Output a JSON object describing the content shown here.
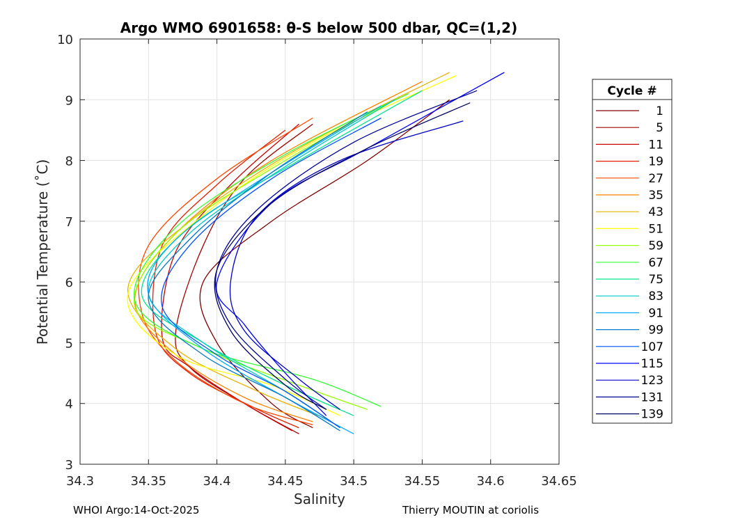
{
  "chart_data": {
    "type": "line",
    "title": "Argo WMO 6901658: θ-S below 500 dbar,  QC=(1,2)",
    "xlabel": "Salinity",
    "ylabel": "Potential Temperature (˚C)",
    "xlim": [
      34.3,
      34.65
    ],
    "ylim": [
      3,
      10
    ],
    "xticks": [
      34.3,
      34.35,
      34.4,
      34.45,
      34.5,
      34.55,
      34.6,
      34.65
    ],
    "xtick_labels": [
      "34.3",
      "34.35",
      "34.4",
      "34.45",
      "34.5",
      "34.55",
      "34.6",
      "34.65"
    ],
    "yticks": [
      3,
      4,
      5,
      6,
      7,
      8,
      9,
      10
    ],
    "ytick_labels": [
      "3",
      "4",
      "5",
      "6",
      "7",
      "8",
      "9",
      "10"
    ],
    "grid": true,
    "legend_title": "Cycle #",
    "legend_position": "outside-right",
    "series": [
      {
        "name": "1",
        "color": "#800000",
        "theta": [
          9.0,
          8.0,
          7.0,
          6.0,
          5.0,
          4.0,
          3.6
        ],
        "salinity": [
          34.57,
          34.51,
          34.44,
          34.39,
          34.4,
          34.44,
          34.47
        ]
      },
      {
        "name": "5",
        "color": "#a00000",
        "theta": [
          8.6,
          7.7,
          6.6,
          5.2,
          4.6,
          4.0,
          3.5
        ],
        "salinity": [
          34.47,
          34.42,
          34.39,
          34.37,
          34.38,
          34.42,
          34.46
        ]
      },
      {
        "name": "11",
        "color": "#c80000",
        "theta": [
          8.6,
          7.6,
          6.5,
          5.1,
          4.6,
          4.0,
          3.55
        ],
        "salinity": [
          34.46,
          34.41,
          34.37,
          34.36,
          34.38,
          34.42,
          34.455
        ]
      },
      {
        "name": "19",
        "color": "#e11e00",
        "theta": [
          8.5,
          7.6,
          6.6,
          5.2,
          4.5,
          3.9,
          3.6
        ],
        "salinity": [
          34.45,
          34.4,
          34.36,
          34.355,
          34.38,
          34.43,
          34.46
        ]
      },
      {
        "name": "27",
        "color": "#ff4600",
        "theta": [
          8.7,
          7.7,
          6.6,
          5.5,
          4.7,
          4.0,
          3.65
        ],
        "salinity": [
          34.47,
          34.4,
          34.35,
          34.345,
          34.37,
          34.42,
          34.47
        ]
      },
      {
        "name": "35",
        "color": "#ff8200",
        "theta": [
          9.3,
          8.0,
          6.8,
          5.7,
          4.8,
          4.1,
          3.7
        ],
        "salinity": [
          34.55,
          34.44,
          34.37,
          34.34,
          34.37,
          34.42,
          34.47
        ]
      },
      {
        "name": "43",
        "color": "#e6b400",
        "theta": [
          9.45,
          8.2,
          7.0,
          5.9,
          4.9,
          4.2,
          3.75
        ],
        "salinity": [
          34.57,
          34.46,
          34.38,
          34.335,
          34.37,
          34.43,
          34.48
        ]
      },
      {
        "name": "51",
        "color": "#ffff00",
        "theta": [
          9.4,
          8.3,
          7.1,
          5.8,
          4.8,
          4.3,
          3.8
        ],
        "salinity": [
          34.575,
          34.47,
          34.39,
          34.335,
          34.37,
          34.44,
          34.49
        ]
      },
      {
        "name": "59",
        "color": "#96ff00",
        "theta": [
          9.0,
          8.0,
          6.8,
          5.6,
          4.9,
          4.3,
          3.9
        ],
        "salinity": [
          34.53,
          34.45,
          34.37,
          34.34,
          34.39,
          34.46,
          34.51
        ]
      },
      {
        "name": "67",
        "color": "#32ff32",
        "theta": [
          9.1,
          8.1,
          6.9,
          5.7,
          4.9,
          4.4,
          3.95
        ],
        "salinity": [
          34.54,
          34.45,
          34.37,
          34.34,
          34.39,
          34.47,
          34.52
        ]
      },
      {
        "name": "75",
        "color": "#00e68c",
        "theta": [
          9.15,
          8.0,
          6.9,
          5.8,
          5.0,
          4.3,
          3.8
        ],
        "salinity": [
          34.55,
          34.46,
          34.38,
          34.345,
          34.39,
          34.45,
          34.5
        ]
      },
      {
        "name": "83",
        "color": "#00c8c8",
        "theta": [
          9.0,
          7.9,
          6.8,
          5.8,
          5.0,
          4.2,
          3.6
        ],
        "salinity": [
          34.53,
          34.45,
          34.38,
          34.35,
          34.39,
          34.45,
          34.49
        ]
      },
      {
        "name": "91",
        "color": "#00aaff",
        "theta": [
          8.9,
          7.8,
          6.7,
          5.8,
          4.9,
          4.1,
          3.5
        ],
        "salinity": [
          34.52,
          34.44,
          34.37,
          34.35,
          34.39,
          34.45,
          34.5
        ]
      },
      {
        "name": "99",
        "color": "#0078c8",
        "theta": [
          8.8,
          7.8,
          6.7,
          5.7,
          4.8,
          4.1,
          3.55
        ],
        "salinity": [
          34.51,
          34.44,
          34.38,
          34.35,
          34.39,
          34.45,
          34.49
        ]
      },
      {
        "name": "107",
        "color": "#0050ff",
        "theta": [
          8.7,
          7.7,
          6.6,
          5.6,
          4.8,
          4.2,
          3.6
        ],
        "salinity": [
          34.52,
          34.44,
          34.38,
          34.36,
          34.4,
          34.45,
          34.49
        ]
      },
      {
        "name": "115",
        "color": "#0000ff",
        "theta": [
          9.45,
          8.2,
          7.3,
          6.0,
          5.3,
          4.5,
          3.8
        ],
        "salinity": [
          34.61,
          34.51,
          34.44,
          34.4,
          34.42,
          34.45,
          34.48
        ]
      },
      {
        "name": "123",
        "color": "#0000c8",
        "theta": [
          8.65,
          8.0,
          7.1,
          6.0,
          5.2,
          4.4,
          3.9
        ],
        "salinity": [
          34.58,
          34.49,
          34.43,
          34.41,
          34.42,
          34.46,
          34.49
        ]
      },
      {
        "name": "131",
        "color": "#000096",
        "theta": [
          9.15,
          8.3,
          7.2,
          6.2,
          5.3,
          4.4,
          3.9
        ],
        "salinity": [
          34.59,
          34.5,
          34.43,
          34.4,
          34.41,
          34.45,
          34.48
        ]
      },
      {
        "name": "139",
        "color": "#000064",
        "theta": [
          8.95,
          8.2,
          7.3,
          6.2,
          5.2,
          4.3,
          3.9
        ],
        "salinity": [
          34.585,
          34.51,
          34.44,
          34.4,
          34.41,
          34.45,
          34.48
        ]
      }
    ]
  },
  "footer": {
    "left": "WHOI Argo:14-Oct-2025",
    "right": "Thierry MOUTIN at coriolis"
  }
}
